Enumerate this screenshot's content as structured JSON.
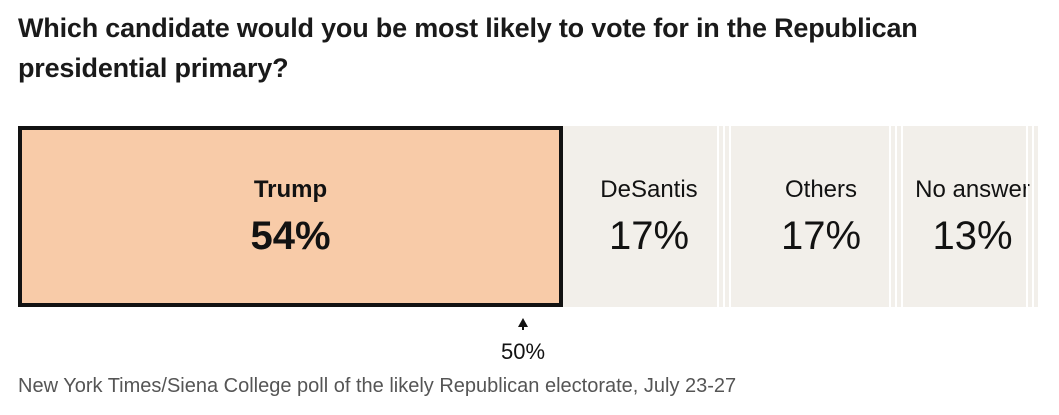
{
  "chart_data": {
    "type": "bar",
    "orientation": "horizontal-stacked",
    "title": "Which candidate would you be most likely to vote for in the Republican presidential primary?",
    "categories": [
      "Trump",
      "DeSantis",
      "Others",
      "No answer"
    ],
    "values": [
      54,
      17,
      17,
      13
    ],
    "value_labels": [
      "54%",
      "17%",
      "17%",
      "13%"
    ],
    "reference_line": {
      "value": 50,
      "label": "50%"
    },
    "source": "New York Times/Siena College poll of the likely Republican electorate, July 23-27",
    "colors": {
      "Trump": "#f8cba8",
      "DeSantis": "#f2efea",
      "Others": "#f2efea",
      "No answer": "#f2efea",
      "highlight_border": "#121212"
    },
    "xlim": [
      0,
      101
    ]
  }
}
